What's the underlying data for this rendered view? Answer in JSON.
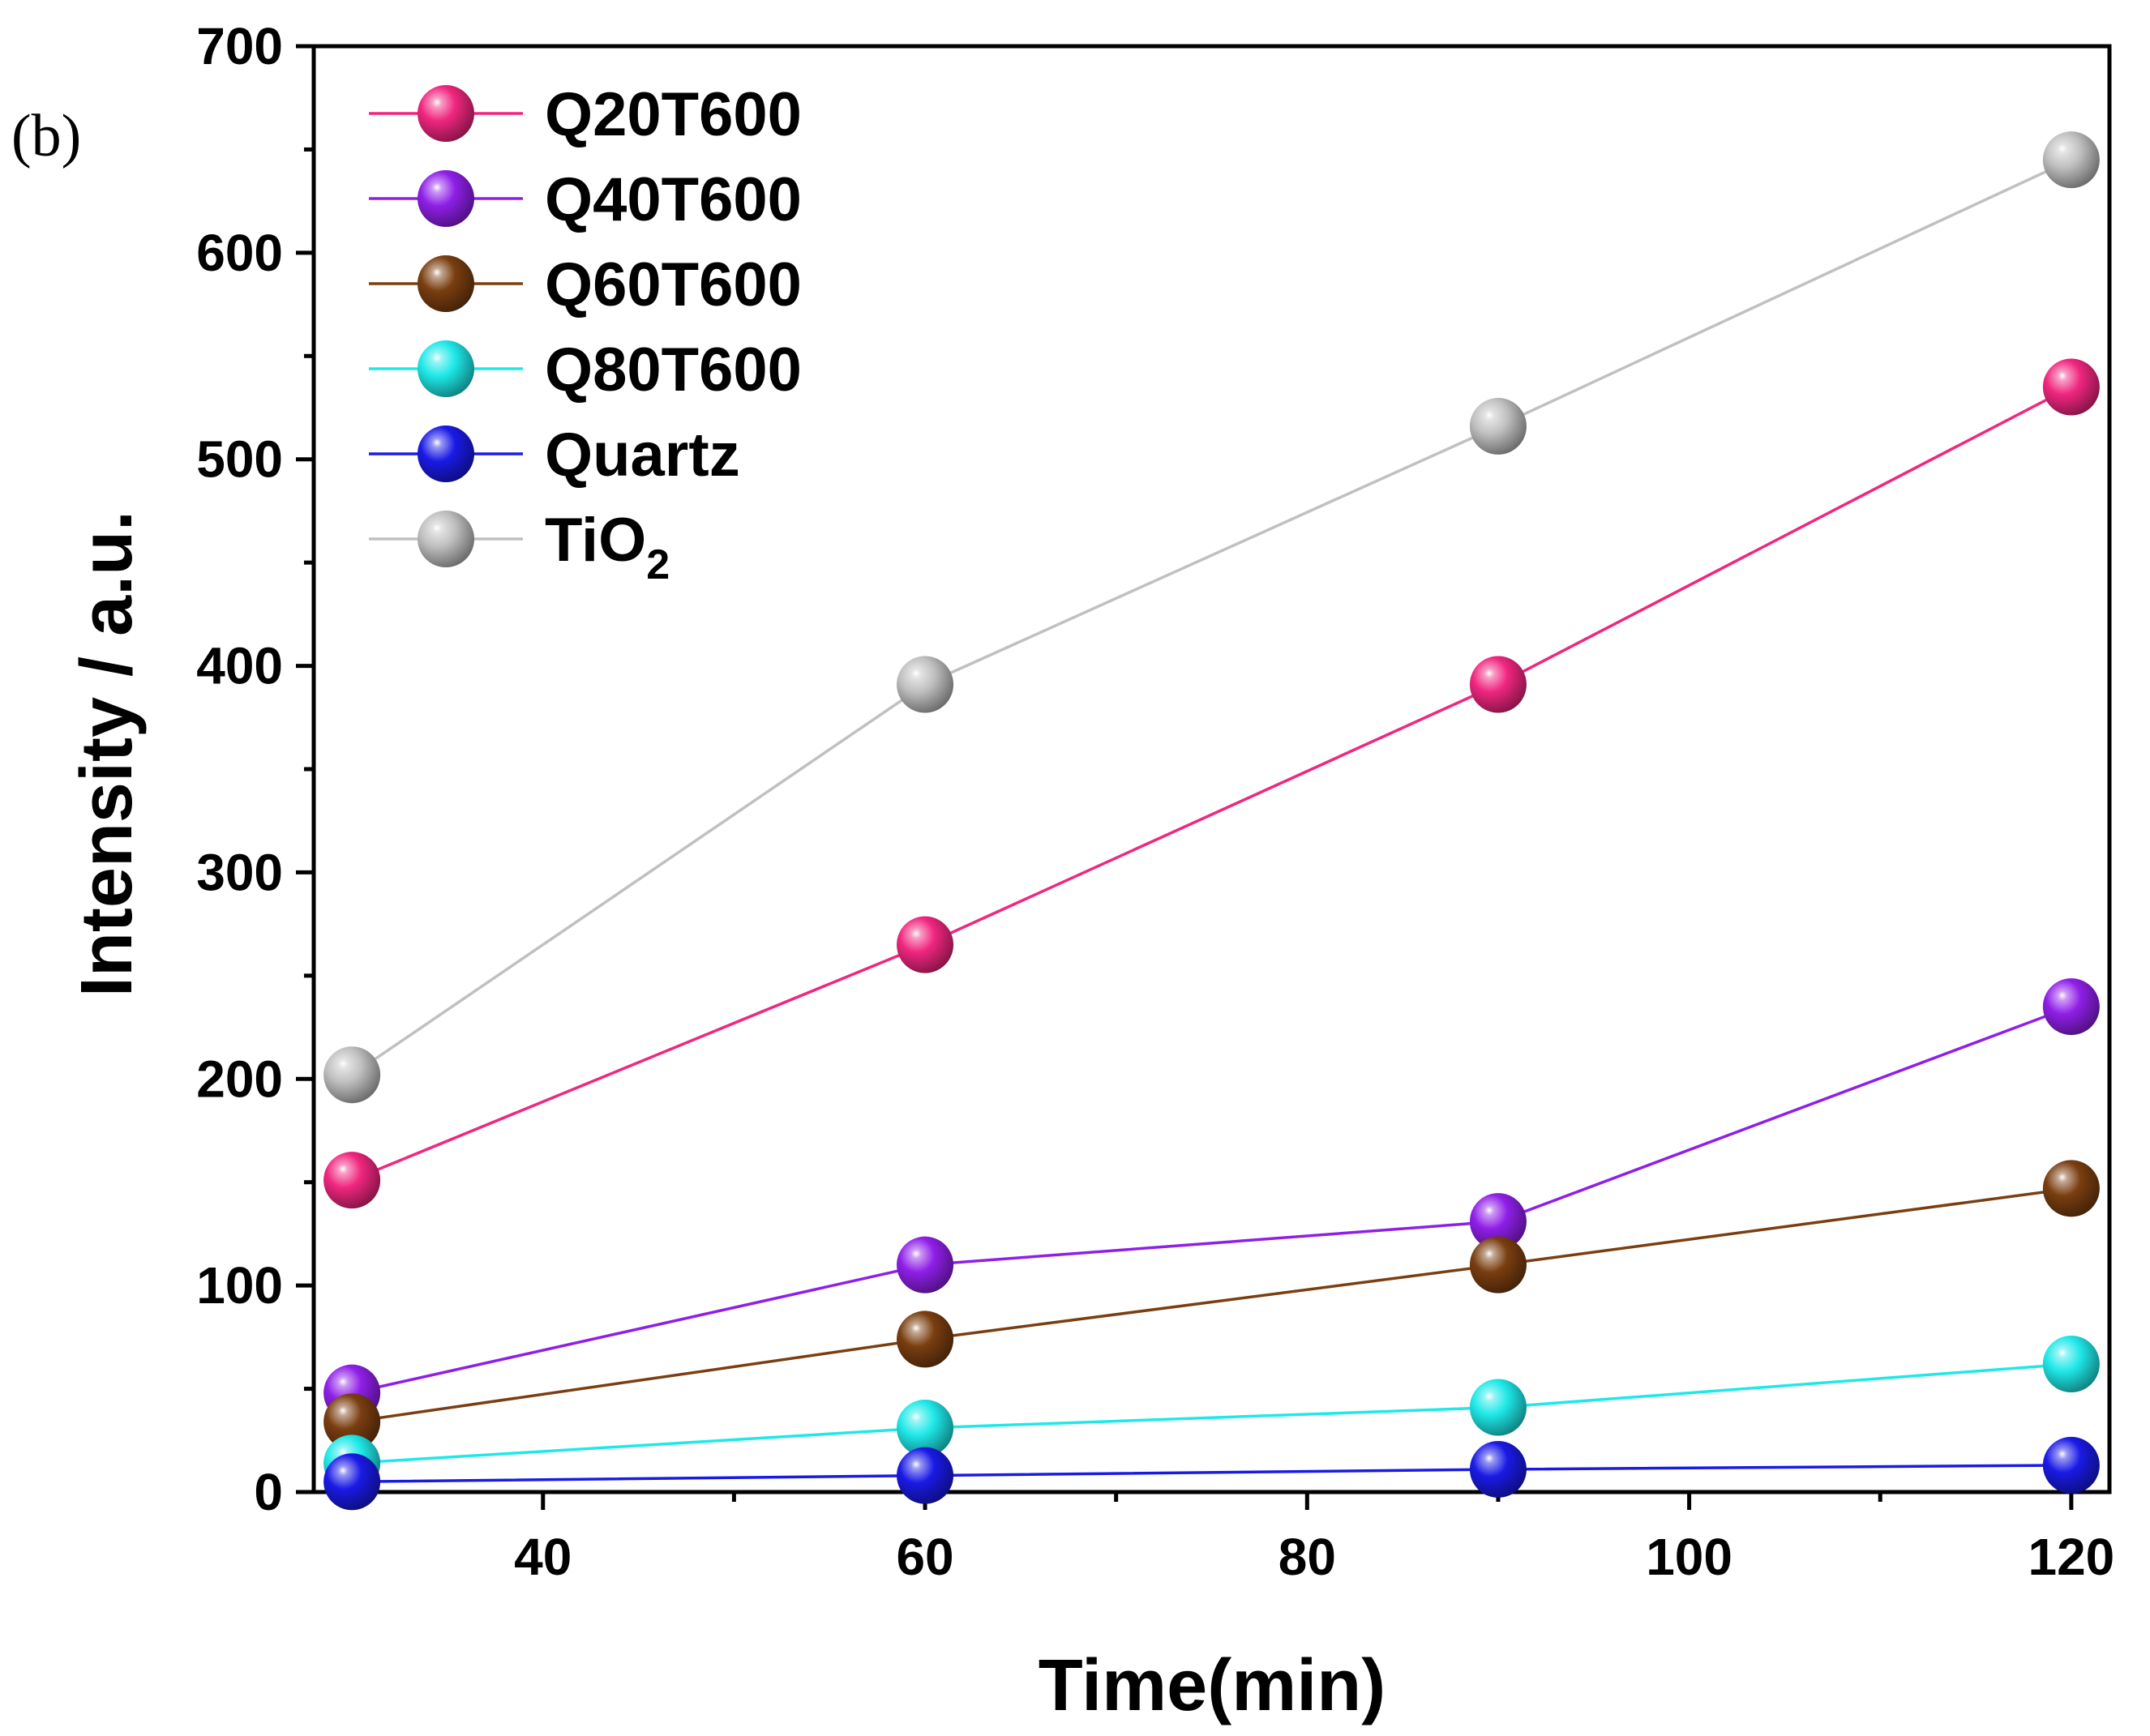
{
  "panel_label": "(b)",
  "chart_data": {
    "type": "line",
    "title": "",
    "xlabel": "Time(min)",
    "ylabel": "Intensity / a.u.",
    "xlim": [
      28,
      122
    ],
    "ylim": [
      0,
      700
    ],
    "x_ticks": [
      40,
      60,
      80,
      100,
      120
    ],
    "x_minor_ticks": [
      30,
      50,
      70,
      90,
      110
    ],
    "y_ticks": [
      0,
      100,
      200,
      300,
      400,
      500,
      600,
      700
    ],
    "x": [
      30,
      60,
      90,
      120
    ],
    "grid": false,
    "legend_position": "top-left",
    "series": [
      {
        "name": "Q20T600",
        "color": "#f0267f",
        "values": [
          151,
          265,
          391,
          535
        ]
      },
      {
        "name": "Q40T600",
        "color": "#8f1fe8",
        "values": [
          48,
          110,
          131,
          235
        ]
      },
      {
        "name": "Q60T600",
        "color": "#7a3e10",
        "values": [
          34,
          74,
          110,
          147
        ]
      },
      {
        "name": "Q80T600",
        "color": "#1fe8e8",
        "values": [
          14,
          31,
          41,
          62
        ]
      },
      {
        "name": "Quartz",
        "color": "#1a1ae6",
        "values": [
          5,
          8,
          11,
          13
        ]
      },
      {
        "name": "TiO",
        "name_subscript": "2",
        "color": "#c0c0c0",
        "values": [
          202,
          391,
          516,
          645
        ]
      }
    ]
  }
}
